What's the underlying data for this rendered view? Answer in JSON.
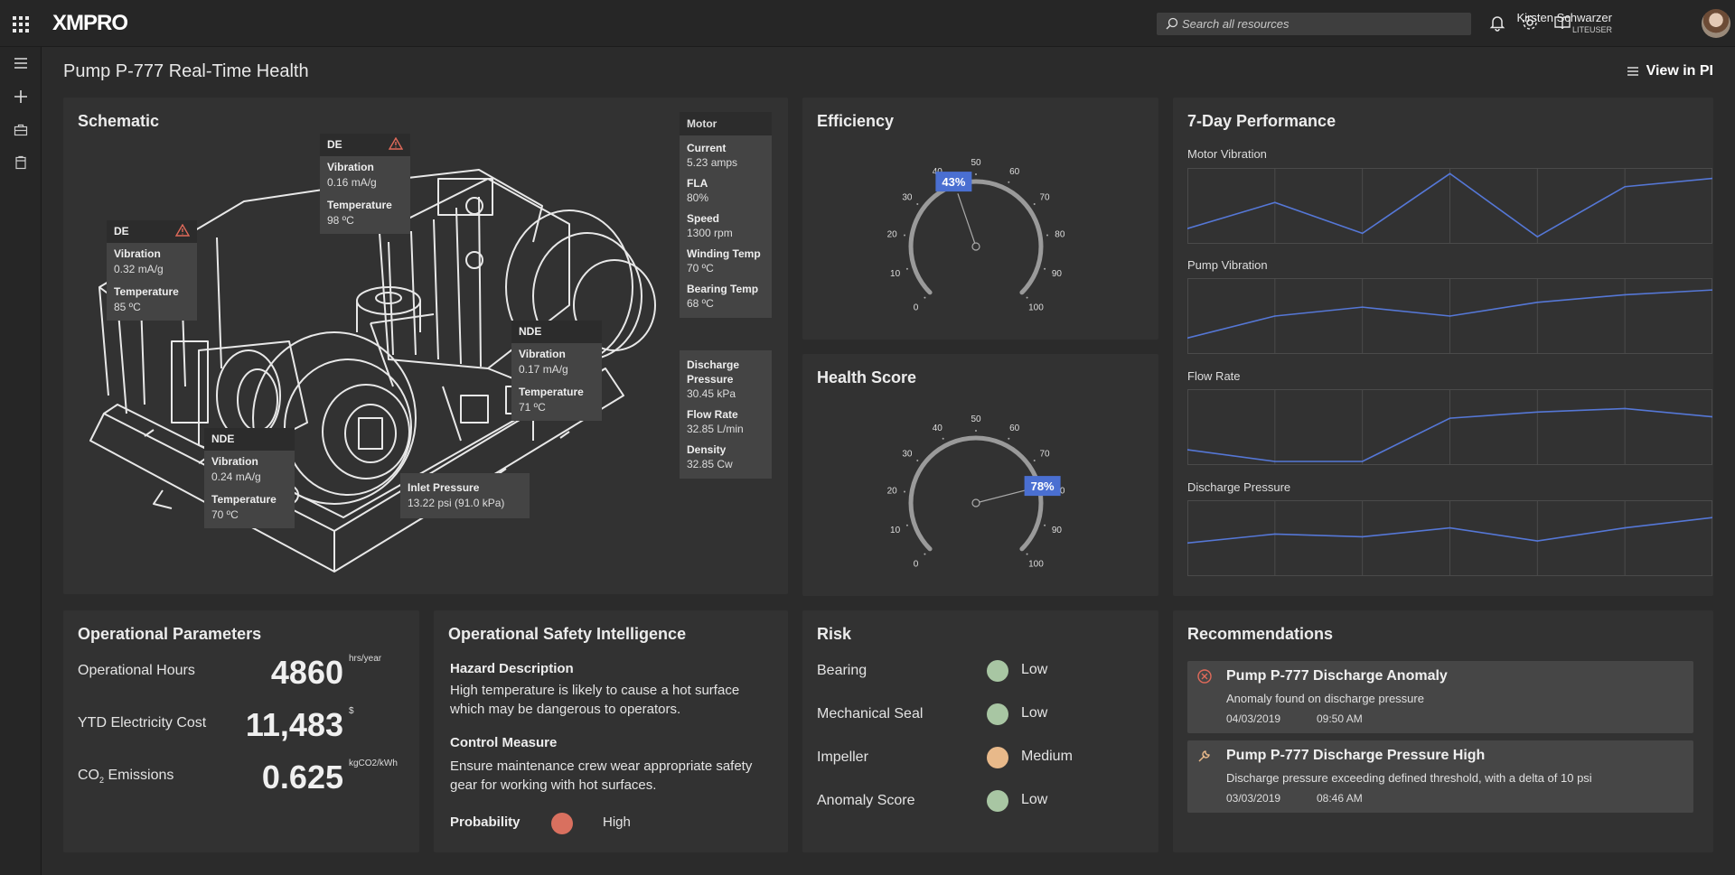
{
  "header": {
    "logo": "XMPRO",
    "search_placeholder": "Search all resources",
    "user_name": "Kirsten Schwarzer",
    "user_role": "LITEUSER"
  },
  "page": {
    "title": "Pump P-777 Real-Time Health",
    "view_link": "View in PI"
  },
  "schematic": {
    "title": "Schematic",
    "tooltips": [
      {
        "id": "de_motor",
        "heading": "DE",
        "warning": true,
        "rows": [
          {
            "label": "Vibration",
            "value": "0.16 mA/g"
          },
          {
            "label": "Temperature",
            "value": "98 ºC"
          }
        ]
      },
      {
        "id": "de_pump",
        "heading": "DE",
        "warning": true,
        "rows": [
          {
            "label": "Vibration",
            "value": "0.32 mA/g"
          },
          {
            "label": "Temperature",
            "value": "85 ºC"
          }
        ]
      },
      {
        "id": "nde_motor",
        "heading": "NDE",
        "warning": false,
        "rows": [
          {
            "label": "Vibration",
            "value": "0.17 mA/g"
          },
          {
            "label": "Temperature",
            "value": "71 ºC"
          }
        ]
      },
      {
        "id": "nde_pump",
        "heading": "NDE",
        "warning": false,
        "rows": [
          {
            "label": "Vibration",
            "value": "0.24 mA/g"
          },
          {
            "label": "Temperature",
            "value": "70 ºC"
          }
        ]
      }
    ],
    "inlet": {
      "label": "Inlet Pressure",
      "value": "13.22 psi (91.0 kPa)"
    },
    "motor_panel": {
      "heading": "Motor",
      "rows": [
        {
          "label": "Current",
          "value": "5.23 amps"
        },
        {
          "label": "FLA",
          "value": "80%"
        },
        {
          "label": "Speed",
          "value": "1300 rpm"
        },
        {
          "label": "Winding Temp",
          "value": "70 ºC"
        },
        {
          "label": "Bearing Temp",
          "value": "68 ºC"
        }
      ]
    },
    "discharge_panel": {
      "rows": [
        {
          "label": "Discharge Pressure",
          "value": "30.45 kPa"
        },
        {
          "label": "Flow Rate",
          "value": "32.85 L/min"
        },
        {
          "label": "Density",
          "value": "32.85 Cw"
        }
      ]
    }
  },
  "efficiency": {
    "title": "Efficiency",
    "value": 43,
    "value_label": "43%",
    "ticks": [
      "0",
      "10",
      "20",
      "30",
      "40",
      "50",
      "60",
      "70",
      "80",
      "90",
      "100"
    ]
  },
  "health": {
    "title": "Health Score",
    "value": 78,
    "value_label": "78%",
    "ticks": [
      "0",
      "10",
      "20",
      "30",
      "40",
      "50",
      "60",
      "70",
      "80",
      "90",
      "100"
    ]
  },
  "performance": {
    "title": "7-Day Performance",
    "charts": [
      {
        "name": "Motor Vibration",
        "values": [
          0.17,
          0.55,
          0.1,
          0.97,
          0.05,
          0.78,
          0.9
        ]
      },
      {
        "name": "Pump Vibration",
        "values": [
          0.18,
          0.5,
          0.63,
          0.5,
          0.7,
          0.81,
          0.88
        ]
      },
      {
        "name": "Flow Rate",
        "values": [
          0.17,
          0.0,
          0.0,
          0.63,
          0.72,
          0.77,
          0.65
        ]
      },
      {
        "name": "Discharge Pressure",
        "values": [
          0.43,
          0.56,
          0.52,
          0.65,
          0.46,
          0.65,
          0.8
        ]
      }
    ]
  },
  "operational": {
    "title": "Operational Parameters",
    "rows": [
      {
        "label": "Operational Hours",
        "value": "4860",
        "unit": "hrs/year"
      },
      {
        "label": "YTD Electricity Cost",
        "value": "11,483",
        "unit": "$"
      },
      {
        "label": "CO",
        "sub": "2",
        "label_tail": " Emissions",
        "value": "0.625",
        "unit": "kgCO2/kWh"
      }
    ]
  },
  "safety": {
    "title": "Operational Safety Intelligence",
    "hazard_heading": "Hazard Description",
    "hazard_text": "High temperature is likely to cause a hot surface which may be dangerous to operators.",
    "control_heading": "Control Measure",
    "control_text": "Ensure maintenance crew wear appropriate safety gear for working with hot surfaces.",
    "probability_label": "Probability",
    "probability_value": "High",
    "probability_color": "#d9705f"
  },
  "risk": {
    "title": "Risk",
    "rows": [
      {
        "label": "Bearing",
        "value": "Low",
        "color": "#a8c6a3"
      },
      {
        "label": "Mechanical Seal",
        "value": "Low",
        "color": "#a8c6a3"
      },
      {
        "label": "Impeller",
        "value": "Medium",
        "color": "#e8b98a"
      },
      {
        "label": "Anomaly Score",
        "value": "Low",
        "color": "#a8c6a3"
      }
    ]
  },
  "recommendations": {
    "title": "Recommendations",
    "items": [
      {
        "icon": "error-circle-icon",
        "title": "Pump P-777 Discharge Anomaly",
        "desc": "Anomaly found on discharge pressure",
        "date": "04/03/2019",
        "time": "09:50 AM"
      },
      {
        "icon": "wrench-icon",
        "title": "Pump P-777 Discharge Pressure High",
        "desc": "Discharge pressure exceeding defined threshold, with a delta of 10 psi",
        "date": "03/03/2019",
        "time": "08:46 AM"
      }
    ]
  },
  "colors": {
    "accent": "#4a6fd1",
    "line": "#5577d6"
  }
}
